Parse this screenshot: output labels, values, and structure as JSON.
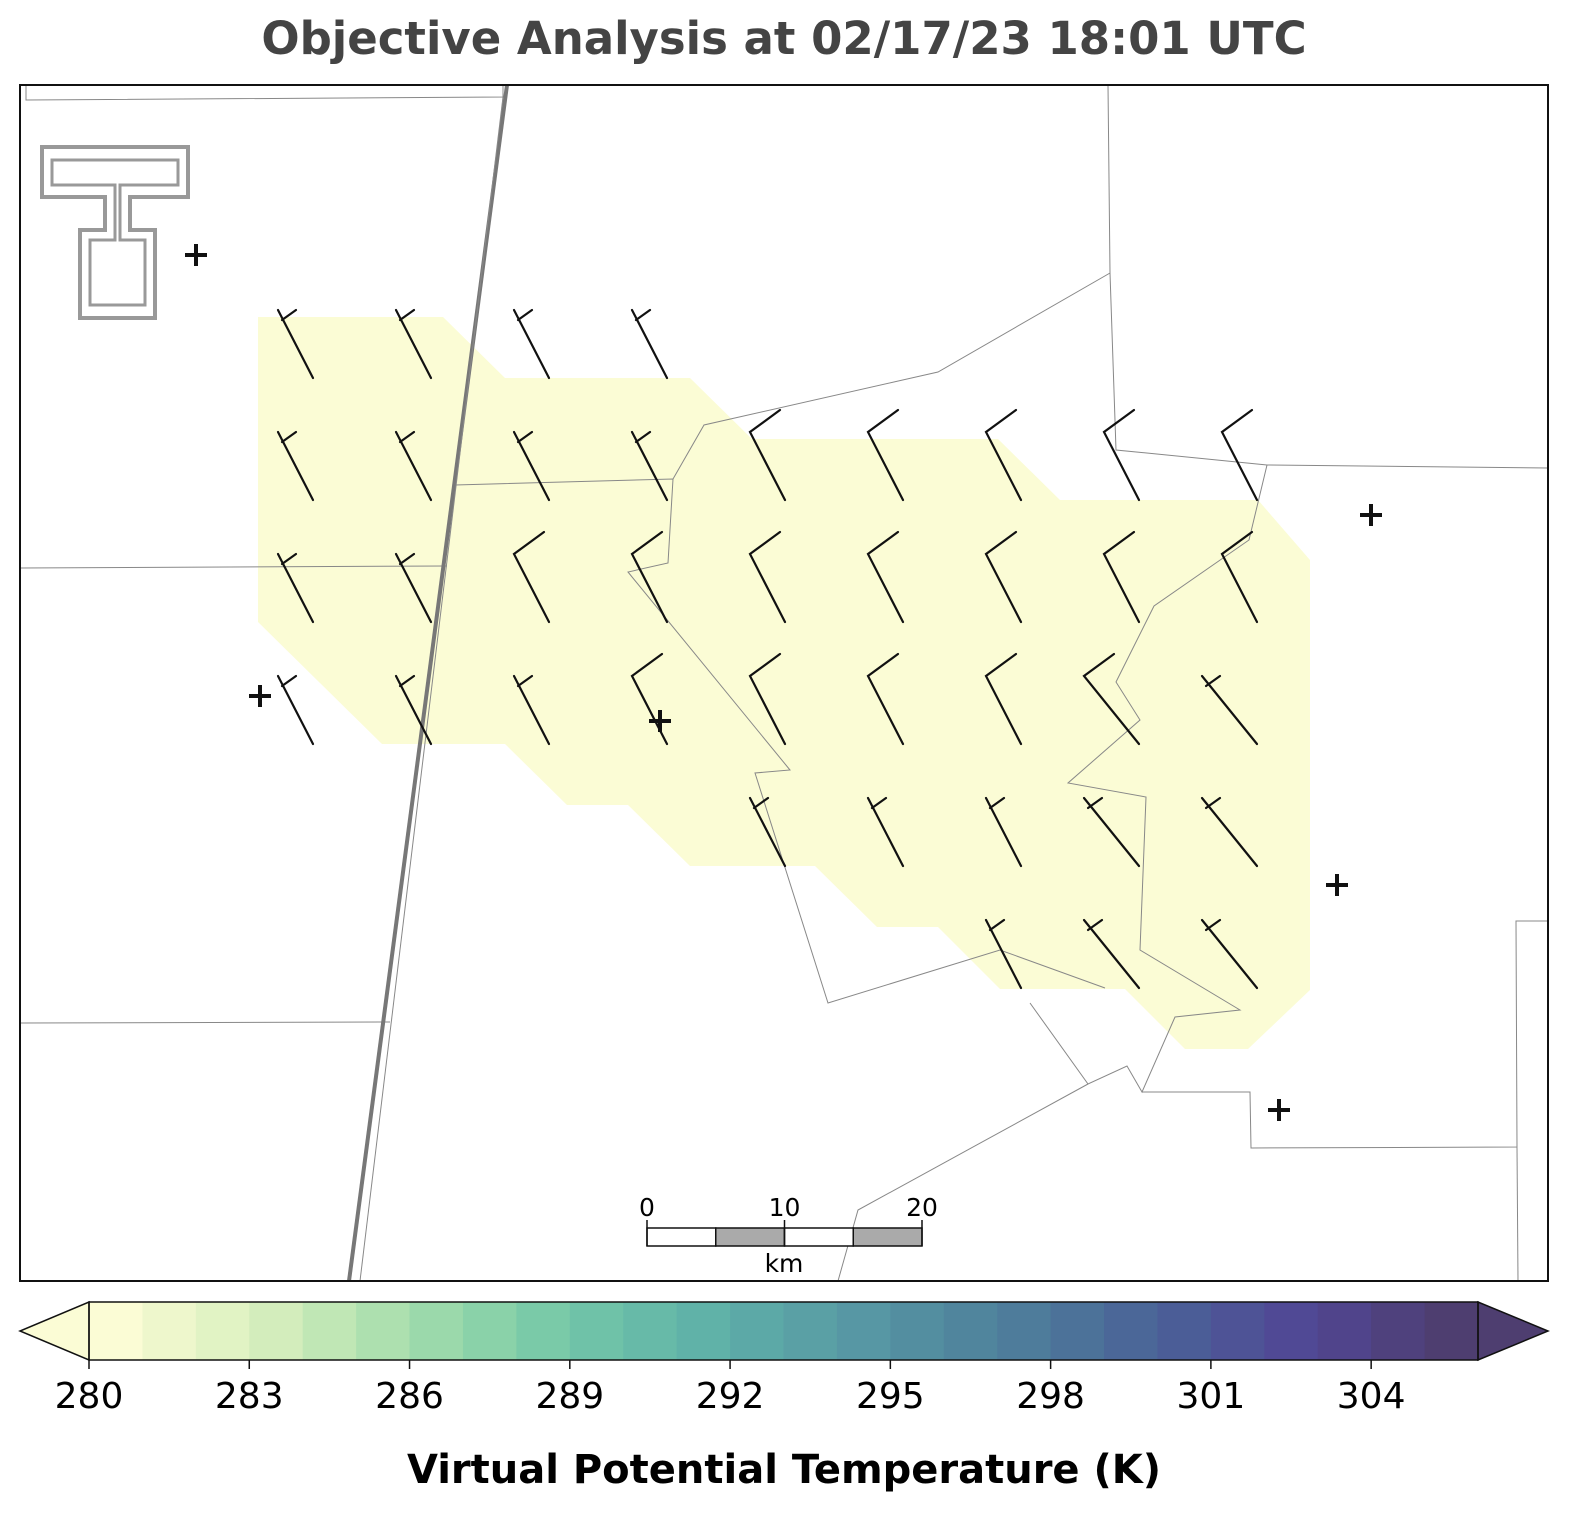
{
  "title": "Objective Analysis at 02/17/23 18:01 UTC",
  "scale_bar": {
    "range": [
      0,
      20
    ],
    "ticks": [
      0,
      10,
      20
    ],
    "unit": "km"
  },
  "colorbar": {
    "label": "Virtual Potential Temperature (K)",
    "range": [
      280,
      306
    ],
    "step": 1,
    "ticks": [
      280,
      283,
      286,
      289,
      292,
      295,
      298,
      301,
      304
    ],
    "color_stops": [
      "#fbfcd5",
      "#d7efbd",
      "#a2dcab",
      "#74c8a8",
      "#5fb1a8",
      "#5798a4",
      "#4e7f9b",
      "#4a6397",
      "#514795",
      "#4e3e70"
    ],
    "extend": "both"
  }
}
